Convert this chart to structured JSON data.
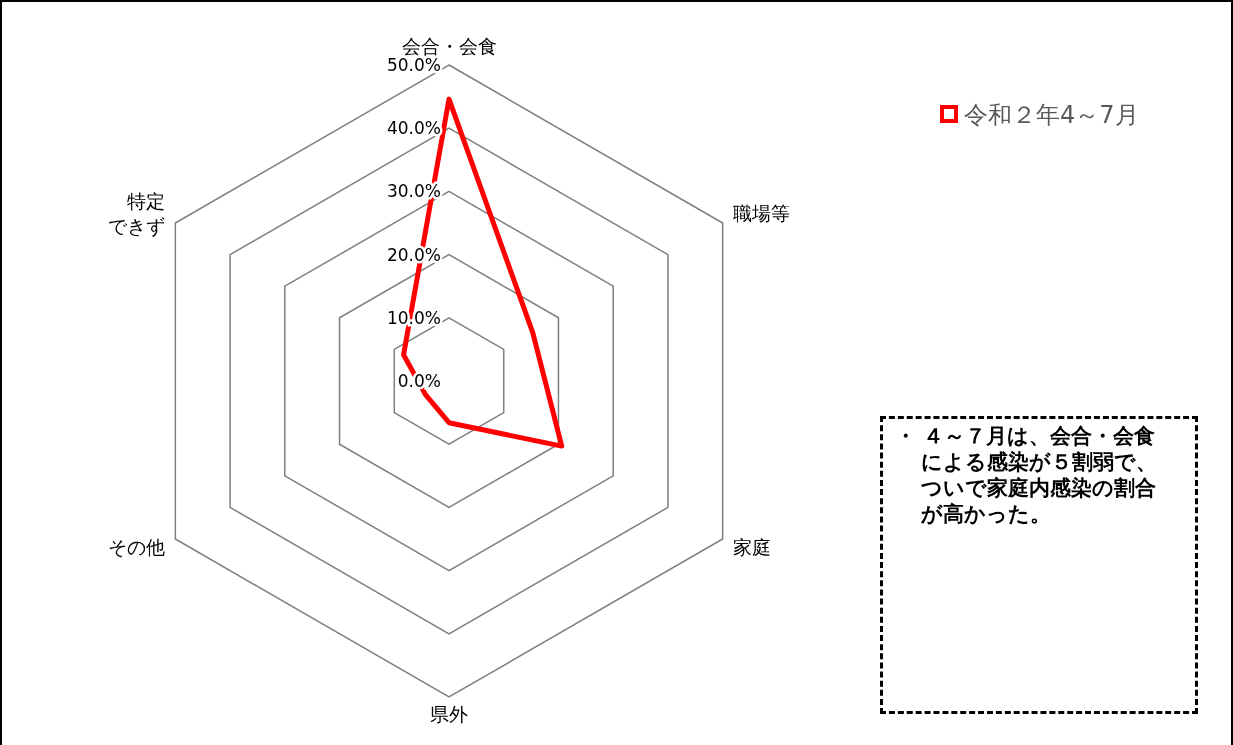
{
  "chart_data": {
    "type": "radar",
    "categories": [
      "会合・会食",
      "職場等",
      "家庭",
      "県外",
      "その他",
      "特定できず"
    ],
    "series": [
      {
        "name": "令和２年4～7月",
        "color": "#ff0000",
        "values": [
          44.6,
          15.3,
          20.6,
          6.6,
          4.3,
          8.3
        ]
      }
    ],
    "ylim": [
      0,
      50
    ],
    "yticks": [
      {
        "value": 0,
        "label": "0.0%"
      },
      {
        "value": 10,
        "label": "10.0%"
      },
      {
        "value": 20,
        "label": "20.0%"
      },
      {
        "value": 30,
        "label": "30.0%"
      },
      {
        "value": 40,
        "label": "40.0%"
      },
      {
        "value": 50,
        "label": "50.0%"
      }
    ],
    "legend": "top right",
    "annotations": [
      "・ ４～７月は、会合・会食による感染が５割弱で、ついで家庭内感染の割合が高かった。"
    ]
  }
}
